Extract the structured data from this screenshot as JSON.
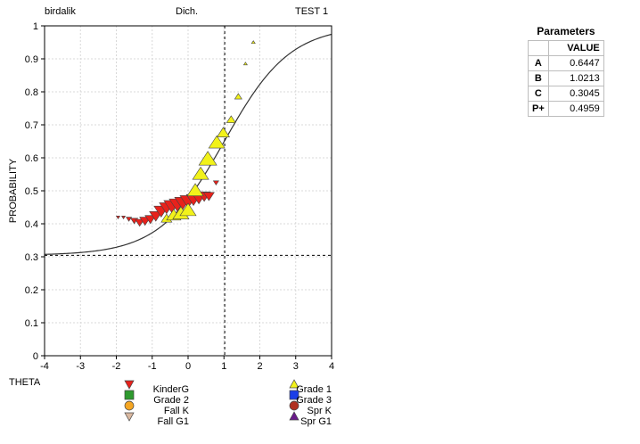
{
  "header": {
    "left": "birdalik",
    "center": "Dich.",
    "right": "TEST 1"
  },
  "parameters": {
    "title": "Parameters",
    "value_header": "VALUE",
    "rows": [
      {
        "label": "A",
        "value": "0.6447"
      },
      {
        "label": "B",
        "value": "1.0213"
      },
      {
        "label": "C",
        "value": "0.3045"
      },
      {
        "label": "P+",
        "value": "0.4959"
      }
    ]
  },
  "legend": {
    "left": [
      {
        "label": "KinderG",
        "symbol": "triangle-down",
        "color": "#e8211b"
      },
      {
        "label": "Grade 2",
        "symbol": "square",
        "color": "#2e9a2e"
      },
      {
        "label": "Fall K",
        "symbol": "circle",
        "color": "#f5a623"
      },
      {
        "label": "Fall G1",
        "symbol": "triangle-down",
        "color": "#d9b8a0"
      }
    ],
    "right": [
      {
        "label": "Grade 1",
        "symbol": "triangle-up",
        "color": "#f2f21a"
      },
      {
        "label": "Grade 3",
        "symbol": "square",
        "color": "#1a3ee8"
      },
      {
        "label": "Spr K",
        "symbol": "circle",
        "color": "#b03020"
      },
      {
        "label": "Spr G1",
        "symbol": "triangle-up",
        "color": "#6a1a8a"
      }
    ]
  },
  "chart_data": {
    "type": "scatter",
    "xlabel": "THETA",
    "ylabel": "PROBABILITY",
    "xlim": [
      -4,
      4
    ],
    "ylim": [
      0,
      1
    ],
    "x_ticks": [
      -4,
      -3,
      -2,
      -1,
      0,
      1,
      2,
      3,
      4
    ],
    "y_ticks": [
      0,
      0.1,
      0.2,
      0.3,
      0.4,
      0.5,
      0.6,
      0.7,
      0.8,
      0.9,
      1
    ],
    "y_tick_labels": [
      "0",
      "0.1",
      "0.2",
      "0.3",
      "0.4",
      "0.5",
      "0.6",
      "0.7",
      "0.8",
      "0.9",
      "1"
    ],
    "grid": true,
    "curve": {
      "model": "3PL",
      "a": 0.6447,
      "b": 1.0213,
      "c": 0.3045,
      "scale": 1.7
    },
    "reference_lines": {
      "x": 1.0213,
      "y": 0.3045
    },
    "series": [
      {
        "name": "KinderG",
        "color": "#e8211b",
        "symbol": "triangle-down",
        "points": [
          {
            "x": -1.95,
            "y": 0.42,
            "s": 2
          },
          {
            "x": -1.8,
            "y": 0.42,
            "s": 2
          },
          {
            "x": -1.65,
            "y": 0.415,
            "s": 3
          },
          {
            "x": -1.5,
            "y": 0.41,
            "s": 4
          },
          {
            "x": -1.35,
            "y": 0.405,
            "s": 5
          },
          {
            "x": -1.2,
            "y": 0.41,
            "s": 6
          },
          {
            "x": -1.05,
            "y": 0.415,
            "s": 6
          },
          {
            "x": -0.9,
            "y": 0.425,
            "s": 7
          },
          {
            "x": -0.75,
            "y": 0.44,
            "s": 8
          },
          {
            "x": -0.6,
            "y": 0.45,
            "s": 8
          },
          {
            "x": -0.45,
            "y": 0.455,
            "s": 9
          },
          {
            "x": -0.3,
            "y": 0.46,
            "s": 9
          },
          {
            "x": -0.15,
            "y": 0.465,
            "s": 9
          },
          {
            "x": 0.0,
            "y": 0.47,
            "s": 9
          },
          {
            "x": 0.15,
            "y": 0.475,
            "s": 8
          },
          {
            "x": 0.3,
            "y": 0.48,
            "s": 8
          },
          {
            "x": 0.45,
            "y": 0.485,
            "s": 7
          },
          {
            "x": 0.58,
            "y": 0.485,
            "s": 6
          },
          {
            "x": 0.78,
            "y": 0.525,
            "s": 3
          }
        ]
      },
      {
        "name": "Grade 1",
        "color": "#f2f21a",
        "symbol": "triangle-up",
        "points": [
          {
            "x": -0.6,
            "y": 0.415,
            "s": 6
          },
          {
            "x": -0.4,
            "y": 0.425,
            "s": 8
          },
          {
            "x": -0.2,
            "y": 0.43,
            "s": 9
          },
          {
            "x": 0.0,
            "y": 0.44,
            "s": 9
          },
          {
            "x": 0.2,
            "y": 0.5,
            "s": 9
          },
          {
            "x": 0.35,
            "y": 0.55,
            "s": 9
          },
          {
            "x": 0.55,
            "y": 0.595,
            "s": 10
          },
          {
            "x": 0.8,
            "y": 0.645,
            "s": 9
          },
          {
            "x": 0.98,
            "y": 0.675,
            "s": 7
          },
          {
            "x": 1.2,
            "y": 0.715,
            "s": 5
          },
          {
            "x": 1.4,
            "y": 0.785,
            "s": 4
          },
          {
            "x": 1.6,
            "y": 0.885,
            "s": 2
          },
          {
            "x": 1.82,
            "y": 0.95,
            "s": 2
          }
        ]
      }
    ]
  }
}
